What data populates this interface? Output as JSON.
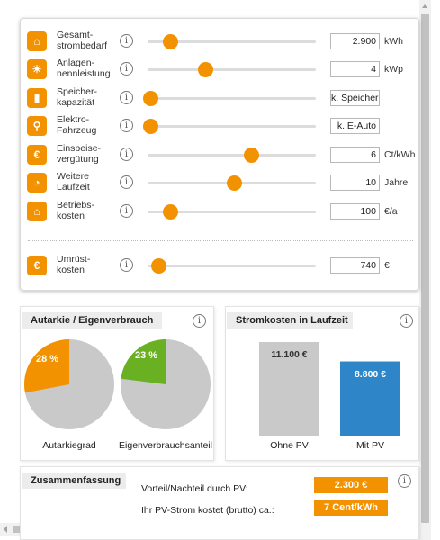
{
  "colors": {
    "accent": "#f39200",
    "green": "#6ab023",
    "blue": "#2e86c8",
    "grey": "#c9c9c9"
  },
  "inputs": [
    {
      "label": "Gesamt-\nstrombedarf",
      "icon": "house-icon",
      "glyph": "⌂",
      "slider_fraction": 0.12,
      "value": "2.900",
      "unit": "kWh"
    },
    {
      "label": "Anlagen-\nnennleistung",
      "icon": "solar-panel-icon",
      "glyph": "☀",
      "slider_fraction": 0.33,
      "value": "4",
      "unit": "kWp"
    },
    {
      "label": "Speicher-\nkapazität",
      "icon": "battery-icon",
      "glyph": "▮",
      "slider_fraction": 0.0,
      "value": "k. Speicher",
      "unit": ""
    },
    {
      "label": "Elektro-\nFahrzeug",
      "icon": "electric-car-icon",
      "glyph": "⚲",
      "slider_fraction": 0.0,
      "value": "k. E-Auto",
      "unit": ""
    },
    {
      "label": "Einspeise-\nvergütung",
      "icon": "euro-icon",
      "glyph": "€",
      "slider_fraction": 0.6,
      "value": "6",
      "unit": "Ct/kWh"
    },
    {
      "label": "Weitere\nLaufzeit",
      "icon": "clock-euro-icon",
      "glyph": "◔",
      "slider_fraction": 0.5,
      "value": "10",
      "unit": "Jahre"
    },
    {
      "label": "Betriebs-\nkosten",
      "icon": "house-cost-icon",
      "glyph": "⌂",
      "slider_fraction": 0.12,
      "value": "100",
      "unit": "€/a"
    }
  ],
  "umruest": {
    "label": "Umrüst-\nkosten",
    "icon": "euro-icon",
    "glyph": "€",
    "slider_fraction": 0.05,
    "value": "740",
    "unit": "€"
  },
  "info_glyph": "i",
  "autarkie": {
    "title": "Autarkie / Eigenverbrauch",
    "pies": [
      {
        "name": "Autarkiegrad",
        "percent": 28,
        "label": "28 %",
        "color": "#f39200"
      },
      {
        "name": "Eigenverbrauchsanteil",
        "percent": 23,
        "label": "23 %",
        "color": "#6ab023"
      }
    ]
  },
  "kosten": {
    "title": "Stromkosten in Laufzeit",
    "chart_data": {
      "type": "bar",
      "categories": [
        "Ohne PV",
        "Mit PV"
      ],
      "values": [
        11100,
        8800
      ],
      "value_labels": [
        "11.100 €",
        "8.800 €"
      ],
      "colors": [
        "#c9c9c9",
        "#2e86c8"
      ],
      "ylim": [
        0,
        11100
      ]
    }
  },
  "zusammenfassung": {
    "title": "Zusammenfassung",
    "rows": [
      {
        "label": "Vorteil/Nachteil durch PV:",
        "value": "2.300 €"
      },
      {
        "label": "Ihr PV-Strom kostet (brutto) ca.:",
        "value": "7 Cent/kWh"
      }
    ]
  }
}
